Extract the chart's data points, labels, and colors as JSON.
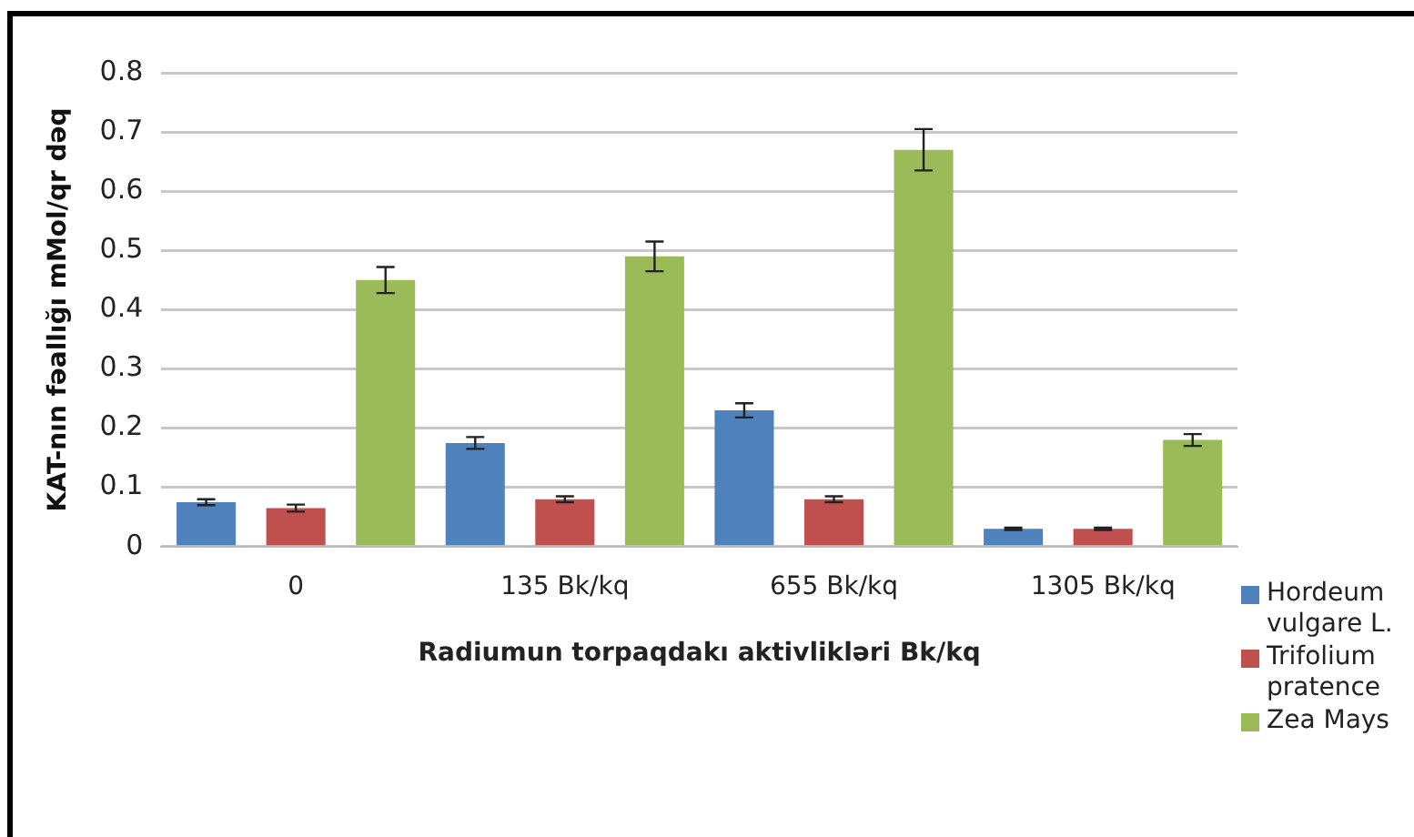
{
  "chart_data": {
    "type": "bar",
    "xlabel": "Radiumun torpaqdakı aktivlikləri Bk/kq",
    "ylabel": "KAT-nın fəallığı mMol/qr dəq",
    "categories": [
      "0",
      "135 Bk/kq",
      "655 Bk/kq",
      "1305 Bk/kq"
    ],
    "series": [
      {
        "name": "Hordeum vulgare L.",
        "color": "#4f81bd",
        "values": [
          0.075,
          0.175,
          0.23,
          0.03
        ],
        "errors": [
          0.005,
          0.01,
          0.012,
          0.002
        ]
      },
      {
        "name": "Trifolium pratence",
        "color": "#c0504d",
        "values": [
          0.065,
          0.08,
          0.08,
          0.03
        ],
        "errors": [
          0.006,
          0.005,
          0.005,
          0.002
        ]
      },
      {
        "name": "Zea Mays",
        "color": "#9bbb59",
        "values": [
          0.45,
          0.49,
          0.67,
          0.18
        ],
        "errors": [
          0.022,
          0.025,
          0.035,
          0.01
        ]
      }
    ],
    "ylim": [
      0,
      0.8
    ],
    "yticks": [
      0,
      0.1,
      0.2,
      0.3,
      0.4,
      0.5,
      0.6,
      0.7,
      0.8
    ],
    "grid": "y",
    "legend": "bottom right"
  }
}
